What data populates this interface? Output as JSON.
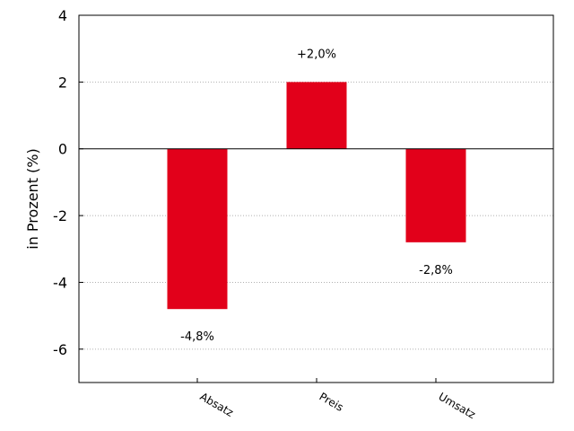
{
  "chart_data": {
    "type": "bar",
    "categories": [
      "Absatz",
      "Preis",
      "Umsatz"
    ],
    "values": [
      -4.8,
      2.0,
      -2.8
    ],
    "data_labels": [
      "-4,8%",
      "+2,0%",
      "-2,8%"
    ],
    "title": "",
    "xlabel": "",
    "ylabel": "in Prozent (%)",
    "ylim": [
      -7,
      4
    ],
    "yticks": [
      4,
      2,
      0,
      -2,
      -4,
      -6
    ],
    "ytick_labels": [
      "4",
      "2",
      "0",
      "-2",
      "-4",
      "-6"
    ],
    "grid": "horizontal dotted",
    "bar_color": "#e2001a",
    "legend": "none"
  }
}
